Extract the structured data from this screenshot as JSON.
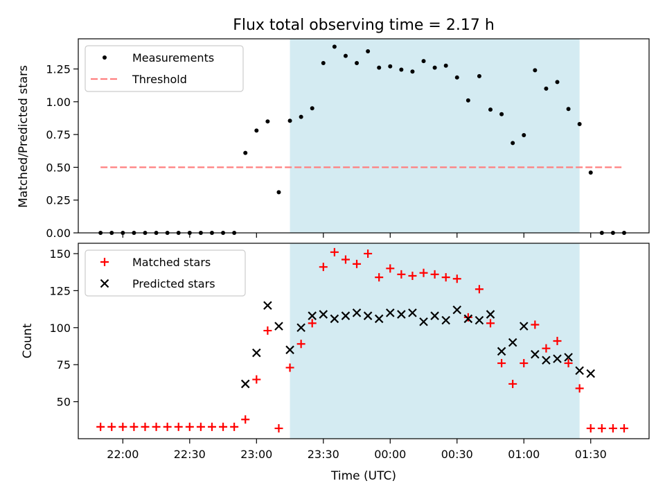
{
  "chart_data": [
    {
      "type": "scatter",
      "title": "Flux total observing time = 2.17 h",
      "xlabel": "",
      "ylabel": "Matched/Predicted stars",
      "xlim": [
        "21:40",
        "01:45"
      ],
      "ylim": [
        0,
        1.48
      ],
      "yticks": [
        "0.00",
        "0.25",
        "0.50",
        "0.75",
        "1.00",
        "1.25"
      ],
      "legend": {
        "placement": "top-left"
      },
      "shaded_region": {
        "x": [
          "23:15",
          "01:25"
        ],
        "color": "#add8e6"
      },
      "colors": {
        "measurements": "#000000",
        "threshold": "#ff7f7f",
        "shade": "#add8e6"
      },
      "series": [
        {
          "name": "Measurements",
          "marker": "dot",
          "x": [
            "21:50",
            "21:55",
            "22:00",
            "22:05",
            "22:10",
            "22:15",
            "22:20",
            "22:25",
            "22:30",
            "22:35",
            "22:40",
            "22:45",
            "22:50",
            "22:55",
            "23:00",
            "23:05",
            "23:10",
            "23:15",
            "23:20",
            "23:25",
            "23:30",
            "23:35",
            "23:40",
            "23:45",
            "23:50",
            "23:55",
            "00:00",
            "00:05",
            "00:10",
            "00:15",
            "00:20",
            "00:25",
            "00:30",
            "00:35",
            "00:40",
            "00:45",
            "00:50",
            "00:55",
            "01:00",
            "01:05",
            "01:10",
            "01:15",
            "01:20",
            "01:25",
            "01:30",
            "01:35",
            "01:40",
            "01:45"
          ],
          "y": [
            0,
            0,
            0,
            0,
            0,
            0,
            0,
            0,
            0,
            0,
            0,
            0,
            0,
            0.61,
            0.78,
            0.85,
            0.31,
            0.855,
            0.885,
            0.95,
            1.295,
            1.42,
            1.35,
            1.295,
            1.385,
            1.26,
            1.27,
            1.245,
            1.23,
            1.31,
            1.26,
            1.275,
            1.185,
            1.01,
            1.195,
            0.94,
            0.905,
            0.685,
            0.745,
            1.24,
            1.1,
            1.15,
            0.945,
            0.83,
            0.46,
            0,
            0,
            0
          ]
        },
        {
          "name": "Threshold",
          "marker": "dashed-line",
          "x": [
            "21:50",
            "01:45"
          ],
          "y": [
            0.5,
            0.5
          ]
        }
      ]
    },
    {
      "type": "scatter",
      "title": "",
      "xlabel": "Time (UTC)",
      "ylabel": "Count",
      "xlim": [
        "21:40",
        "01:45"
      ],
      "ylim": [
        25,
        157
      ],
      "yticks": [
        "50",
        "75",
        "100",
        "125",
        "150"
      ],
      "xticks": [
        "22:00",
        "22:30",
        "23:00",
        "23:30",
        "00:00",
        "00:30",
        "01:00",
        "01:30"
      ],
      "legend": {
        "placement": "top-left"
      },
      "shaded_region": {
        "x": [
          "23:15",
          "01:25"
        ],
        "color": "#add8e6"
      },
      "colors": {
        "matched": "#ff0000",
        "predicted": "#000000"
      },
      "series": [
        {
          "name": "Matched stars",
          "marker": "plus",
          "x": [
            "21:50",
            "21:55",
            "22:00",
            "22:05",
            "22:10",
            "22:15",
            "22:20",
            "22:25",
            "22:30",
            "22:35",
            "22:40",
            "22:45",
            "22:50",
            "22:55",
            "23:00",
            "23:05",
            "23:10",
            "23:15",
            "23:20",
            "23:25",
            "23:30",
            "23:35",
            "23:40",
            "23:45",
            "23:50",
            "23:55",
            "00:00",
            "00:05",
            "00:10",
            "00:15",
            "00:20",
            "00:25",
            "00:30",
            "00:35",
            "00:40",
            "00:45",
            "00:50",
            "00:55",
            "01:00",
            "01:05",
            "01:10",
            "01:15",
            "01:20",
            "01:25",
            "01:30",
            "01:35",
            "01:40",
            "01:45"
          ],
          "y": [
            33,
            33,
            33,
            33,
            33,
            33,
            33,
            33,
            33,
            33,
            33,
            33,
            33,
            38,
            65,
            98,
            32,
            73,
            89,
            103,
            141,
            151,
            146,
            143,
            150,
            134,
            140,
            136,
            135,
            137,
            136,
            134,
            133,
            107,
            126,
            103,
            76,
            62,
            76,
            102,
            86,
            91,
            76,
            59,
            32,
            32,
            32,
            32
          ]
        },
        {
          "name": "Predicted stars",
          "marker": "x",
          "x": [
            "22:55",
            "23:00",
            "23:05",
            "23:10",
            "23:15",
            "23:20",
            "23:25",
            "23:30",
            "23:35",
            "23:40",
            "23:45",
            "23:50",
            "23:55",
            "00:00",
            "00:05",
            "00:10",
            "00:15",
            "00:20",
            "00:25",
            "00:30",
            "00:35",
            "00:40",
            "00:45",
            "00:50",
            "00:55",
            "01:00",
            "01:05",
            "01:10",
            "01:15",
            "01:20",
            "01:25",
            "01:30"
          ],
          "y": [
            62,
            83,
            115,
            101,
            85,
            100,
            108,
            109,
            106,
            108,
            110,
            108,
            106,
            110,
            109,
            110,
            104,
            108,
            105,
            112,
            106,
            105,
            109,
            84,
            90,
            101,
            82,
            78,
            79,
            80,
            71,
            69
          ]
        }
      ]
    }
  ]
}
